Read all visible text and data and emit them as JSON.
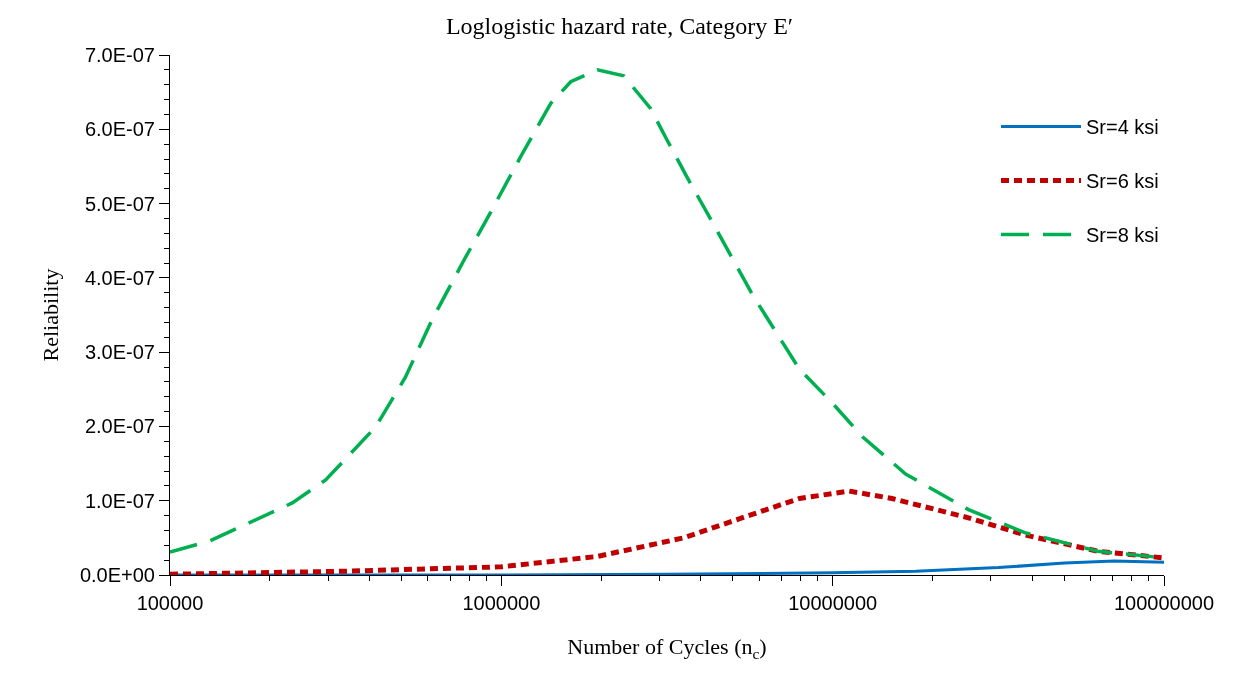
{
  "chart_data": {
    "type": "line",
    "title": "Loglogistic hazard rate, Category E′",
    "xlabel": "Number of Cycles (n$_{c}$)",
    "ylabel": "Reliability",
    "log": "x",
    "legend": "top right",
    "marker": "none",
    "xlim": [
      100000,
      100000000
    ],
    "xticks": [
      100000,
      1000000,
      10000000,
      100000000
    ],
    "ylim": [
      0,
      7e-07
    ],
    "yticks": [
      {
        "value": 0,
        "label": "0.0E+00"
      },
      {
        "value": 1e-07,
        "label": "1.0E-07"
      },
      {
        "value": 2e-07,
        "label": "2.0E-07"
      },
      {
        "value": 3e-07,
        "label": "3.0E-07"
      },
      {
        "value": 4e-07,
        "label": "4.0E-07"
      },
      {
        "value": 5e-07,
        "label": "5.0E-07"
      },
      {
        "value": 6e-07,
        "label": "6.0E-07"
      },
      {
        "value": 7e-07,
        "label": "7.0E-07"
      }
    ],
    "series": [
      {
        "name": "Sr=4 ksi",
        "color": "#0070c0",
        "line_style": "solid",
        "x": [
          100000.0,
          316000.0,
          1000000.0,
          3160000.0,
          10000000.0,
          17800000.0,
          31600000.0,
          50100000.0,
          70800000.0,
          100000000.0
        ],
        "values": [
          0,
          0,
          0,
          1e-09,
          3e-09,
          5e-09,
          1e-08,
          1.6e-08,
          1.9e-08,
          1.7e-08
        ]
      },
      {
        "name": "Sr=6 ksi",
        "color": "#c00000",
        "line_style": "dotted",
        "x": [
          100000.0,
          331000.0,
          1000000.0,
          1950000.0,
          3550000.0,
          5750000.0,
          7940000.0,
          11200000.0,
          15100000.0,
          25700000.0,
          38000000.0,
          63100000.0,
          100000000.0
        ],
        "values": [
          1e-09,
          5e-09,
          1.1e-08,
          2.5e-08,
          5e-08,
          8.2e-08,
          1.03e-07,
          1.13e-07,
          1.03e-07,
          7.7e-08,
          5.4e-08,
          3.2e-08,
          2.3e-08
        ]
      },
      {
        "name": "Sr=8 ksi",
        "color": "#00b050",
        "line_style": "dashed",
        "x": [
          100000.0,
          132000.0,
          234000.0,
          295000.0,
          417000.0,
          513000.0,
          617000.0,
          776000.0,
          912000.0,
          1150000.0,
          1410000.0,
          1620000.0,
          1950000.0,
          2340000.0,
          2820000.0,
          3160000.0,
          3630000.0,
          4270000.0,
          5750000.0,
          7940000.0,
          10000000.0,
          12300000.0,
          16600000.0,
          25700000.0,
          38000000.0,
          63100000.0,
          100000000.0
        ],
        "values": [
          3.1e-08,
          4.6e-08,
          9.7e-08,
          1.28e-07,
          1.99e-07,
          2.66e-07,
          3.43e-07,
          4.26e-07,
          4.82e-07,
          5.65e-07,
          6.35e-07,
          6.64e-07,
          6.8e-07,
          6.72e-07,
          6.28e-07,
          5.86e-07,
          5.36e-07,
          4.8e-07,
          3.76e-07,
          2.77e-07,
          2.31e-07,
          1.86e-07,
          1.36e-07,
          8.8e-08,
          5.7e-08,
          3.2e-08,
          2.3e-08
        ]
      }
    ]
  }
}
